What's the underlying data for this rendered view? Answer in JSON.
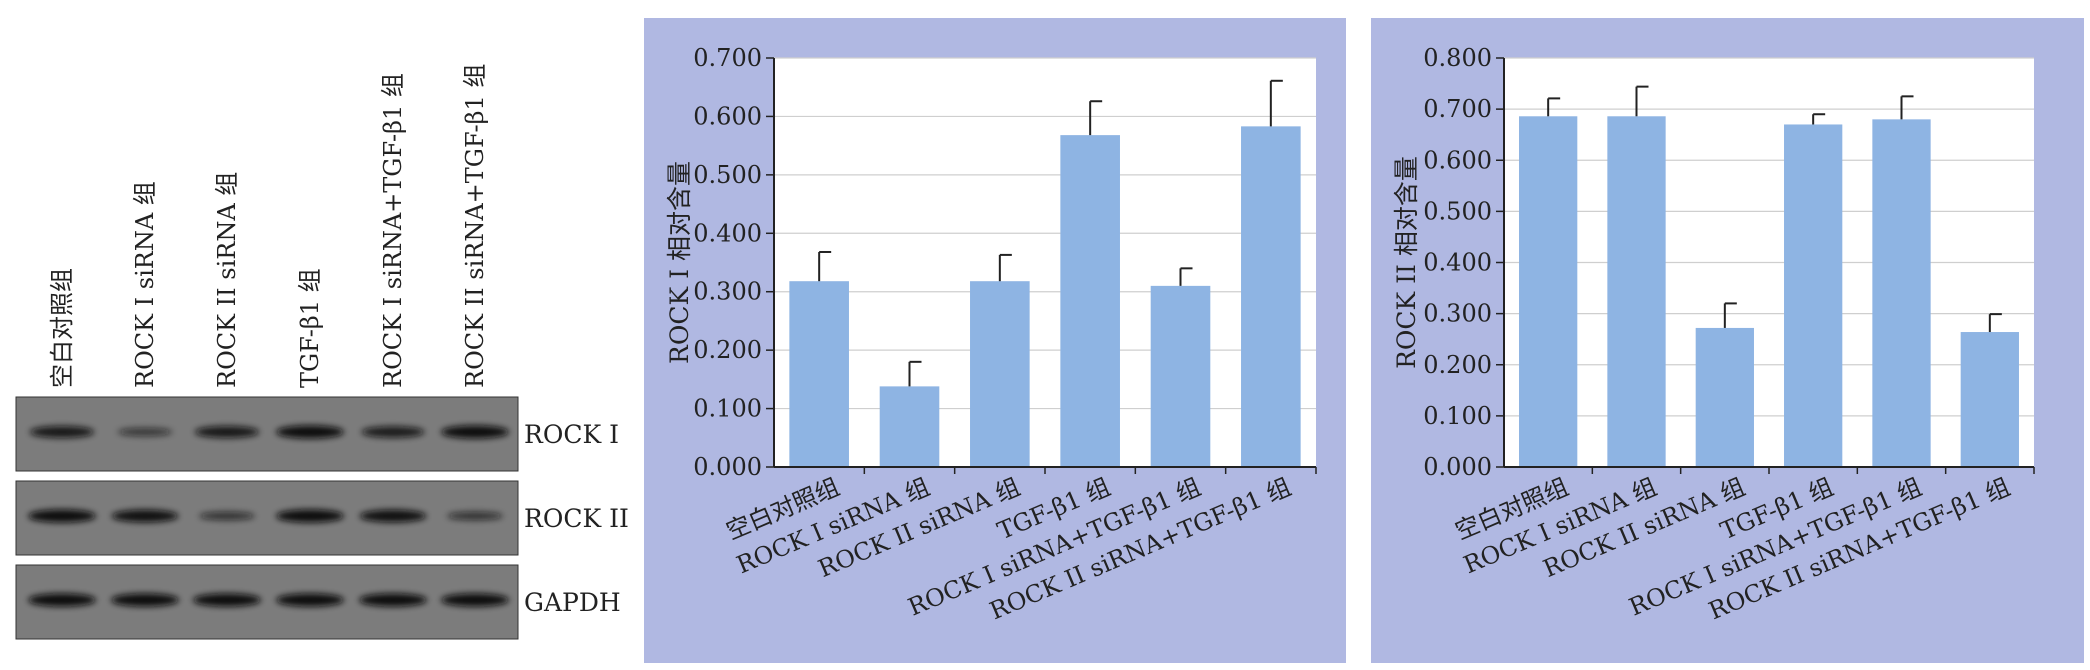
{
  "blot": {
    "lane_labels": [
      "空白对照组",
      "ROCK I siRNA 组",
      "ROCK II siRNA 组",
      "TGF-β1 组",
      "ROCK I siRNA+TGF-β1 组",
      "ROCK II siRNA+TGF-β1 组"
    ],
    "row_labels": [
      "ROCK I",
      "ROCK II",
      "GAPDH"
    ],
    "band_intensity": [
      [
        0.85,
        0.45,
        0.85,
        1.0,
        0.8,
        1.0
      ],
      [
        1.0,
        0.95,
        0.5,
        1.0,
        0.95,
        0.5
      ],
      [
        1.0,
        1.0,
        1.0,
        1.0,
        1.0,
        1.0
      ]
    ]
  },
  "chart_data": [
    {
      "type": "bar",
      "categories": [
        "空白对照组",
        "ROCK I siRNA 组",
        "ROCK II siRNA 组",
        "TGF-β1 组",
        "ROCK I siRNA+TGF-β1 组",
        "ROCK II siRNA+TGF-β1 组"
      ],
      "values": [
        0.318,
        0.138,
        0.318,
        0.568,
        0.31,
        0.583
      ],
      "errors": [
        0.05,
        0.042,
        0.045,
        0.058,
        0.03,
        0.078
      ],
      "ylabel": "ROCK I 相对含量",
      "ylim": [
        0,
        0.7
      ],
      "yticks": [
        "0.000",
        "0.100",
        "0.200",
        "0.300",
        "0.400",
        "0.500",
        "0.600",
        "0.700"
      ],
      "grid": true,
      "bar_color": "#8eb4e3",
      "panel_color": "#b0b8e2"
    },
    {
      "type": "bar",
      "categories": [
        "空白对照组",
        "ROCK I siRNA 组",
        "ROCK II siRNA 组",
        "TGF-β1 组",
        "ROCK I siRNA+TGF-β1 组",
        "ROCK II siRNA+TGF-β1 组"
      ],
      "values": [
        0.686,
        0.686,
        0.272,
        0.67,
        0.68,
        0.264
      ],
      "errors": [
        0.035,
        0.058,
        0.048,
        0.02,
        0.045,
        0.035
      ],
      "ylabel": "ROCK II 相对含量",
      "ylim": [
        0,
        0.8
      ],
      "yticks": [
        "0.000",
        "0.100",
        "0.200",
        "0.300",
        "0.400",
        "0.500",
        "0.600",
        "0.700",
        "0.800"
      ],
      "grid": true,
      "bar_color": "#8eb4e3",
      "panel_color": "#b0b8e2"
    }
  ]
}
